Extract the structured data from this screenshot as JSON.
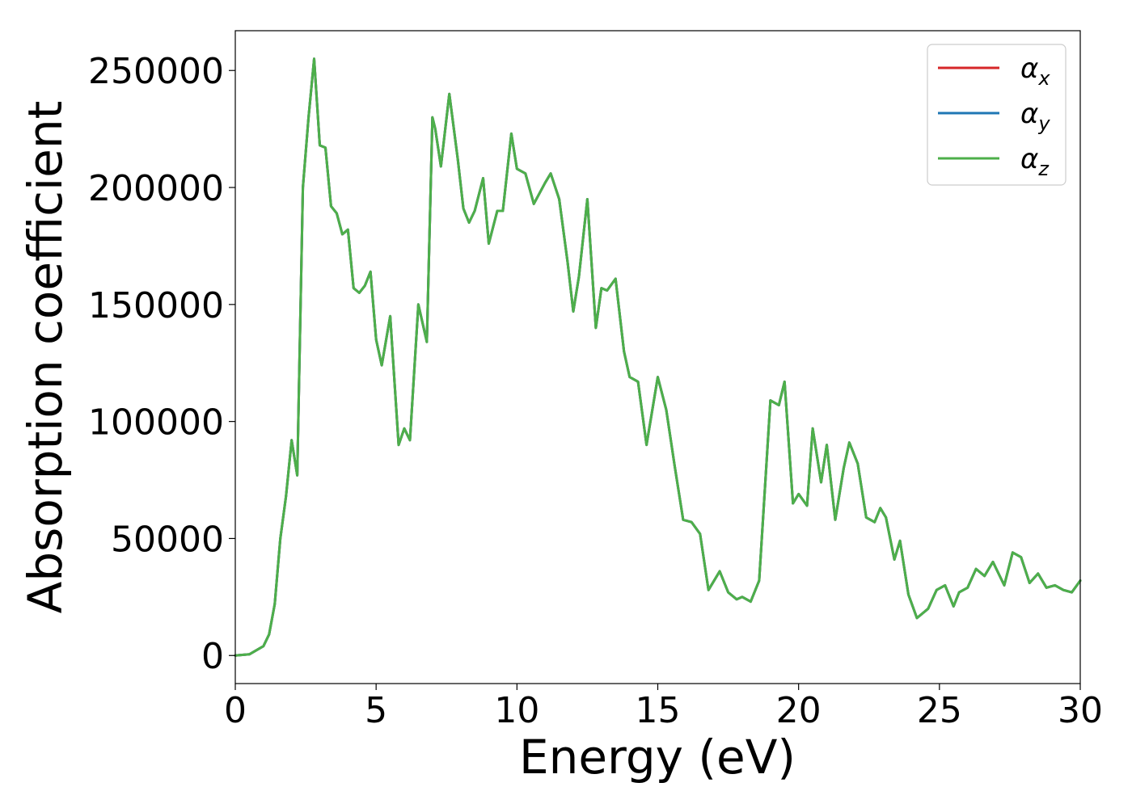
{
  "chart_data": {
    "type": "line",
    "title": "",
    "xlabel": "Energy (eV)",
    "ylabel": "Absorption coefficient",
    "xlim": [
      0,
      30
    ],
    "ylim": [
      -12000,
      267000
    ],
    "xticks": [
      0,
      5,
      10,
      15,
      20,
      25,
      30
    ],
    "xtick_labels": [
      "0",
      "5",
      "10",
      "15",
      "20",
      "25",
      "30"
    ],
    "yticks": [
      0,
      50000,
      100000,
      150000,
      200000,
      250000
    ],
    "ytick_labels": [
      "0",
      "50000",
      "100000",
      "150000",
      "200000",
      "250000"
    ],
    "grid": false,
    "legend_position": "top-right",
    "colors": {
      "alpha_x": "#d62728",
      "alpha_y": "#1f77b4",
      "alpha_z": "#4daf4a",
      "axis": "#000000",
      "legend_border": "#cccccc"
    },
    "x": [
      0,
      0.5,
      1.0,
      1.2,
      1.4,
      1.6,
      1.8,
      2.0,
      2.2,
      2.4,
      2.6,
      2.8,
      3.0,
      3.2,
      3.4,
      3.6,
      3.8,
      4.0,
      4.2,
      4.4,
      4.6,
      4.8,
      5.0,
      5.2,
      5.5,
      5.8,
      6.0,
      6.2,
      6.5,
      6.8,
      7.0,
      7.1,
      7.3,
      7.6,
      7.9,
      8.1,
      8.3,
      8.5,
      8.8,
      9.0,
      9.3,
      9.5,
      9.8,
      10.0,
      10.3,
      10.6,
      11.0,
      11.2,
      11.5,
      11.8,
      12.0,
      12.2,
      12.5,
      12.8,
      13.0,
      13.2,
      13.5,
      13.8,
      14.0,
      14.3,
      14.6,
      15.0,
      15.3,
      15.6,
      15.9,
      16.2,
      16.5,
      16.8,
      17.2,
      17.5,
      17.8,
      18.0,
      18.3,
      18.6,
      19.0,
      19.3,
      19.5,
      19.8,
      20.0,
      20.3,
      20.5,
      20.8,
      21.0,
      21.3,
      21.6,
      21.8,
      22.1,
      22.4,
      22.7,
      22.9,
      23.1,
      23.4,
      23.6,
      23.9,
      24.2,
      24.6,
      24.9,
      25.2,
      25.5,
      25.7,
      26.0,
      26.3,
      26.6,
      26.9,
      27.3,
      27.6,
      27.9,
      28.2,
      28.5,
      28.8,
      29.1,
      29.4,
      29.7,
      30.0
    ],
    "series": [
      {
        "name": "α_x",
        "values": [
          0,
          500,
          4000,
          9000,
          22000,
          50000,
          68000,
          92000,
          77000,
          200000,
          230000,
          255000,
          218000,
          217000,
          192000,
          189000,
          180000,
          182000,
          157000,
          155000,
          158000,
          164000,
          135000,
          124000,
          145000,
          90000,
          97000,
          92000,
          150000,
          134000,
          230000,
          225000,
          209000,
          240000,
          212000,
          191000,
          185000,
          190000,
          204000,
          176000,
          190000,
          190000,
          223000,
          208000,
          206000,
          193000,
          202000,
          206000,
          195000,
          168000,
          147000,
          162000,
          195000,
          140000,
          157000,
          156000,
          161000,
          130000,
          119000,
          117000,
          90000,
          119000,
          105000,
          81000,
          58000,
          57000,
          52000,
          28000,
          36000,
          27000,
          24000,
          25000,
          23000,
          32000,
          109000,
          107000,
          117000,
          65000,
          69000,
          64000,
          97000,
          74000,
          90000,
          58000,
          80000,
          91000,
          82000,
          59000,
          57000,
          63000,
          59000,
          41000,
          49000,
          26000,
          16000,
          20000,
          28000,
          30000,
          21000,
          27000,
          29000,
          37000,
          34000,
          40000,
          30000,
          44000,
          42000,
          31000,
          35000,
          29000,
          30000,
          28000,
          27000,
          32000
        ]
      },
      {
        "name": "α_y",
        "values": [
          0,
          500,
          4000,
          9000,
          22000,
          50000,
          68000,
          92000,
          77000,
          200000,
          230000,
          255000,
          218000,
          217000,
          192000,
          189000,
          180000,
          182000,
          157000,
          155000,
          158000,
          164000,
          135000,
          124000,
          145000,
          90000,
          97000,
          92000,
          150000,
          134000,
          230000,
          225000,
          209000,
          240000,
          212000,
          191000,
          185000,
          190000,
          204000,
          176000,
          190000,
          190000,
          223000,
          208000,
          206000,
          193000,
          202000,
          206000,
          195000,
          168000,
          147000,
          162000,
          195000,
          140000,
          157000,
          156000,
          161000,
          130000,
          119000,
          117000,
          90000,
          119000,
          105000,
          81000,
          58000,
          57000,
          52000,
          28000,
          36000,
          27000,
          24000,
          25000,
          23000,
          32000,
          109000,
          107000,
          117000,
          65000,
          69000,
          64000,
          97000,
          74000,
          90000,
          58000,
          80000,
          91000,
          82000,
          59000,
          57000,
          63000,
          59000,
          41000,
          49000,
          26000,
          16000,
          20000,
          28000,
          30000,
          21000,
          27000,
          29000,
          37000,
          34000,
          40000,
          30000,
          44000,
          42000,
          31000,
          35000,
          29000,
          30000,
          28000,
          27000,
          32000
        ]
      },
      {
        "name": "α_z",
        "values": [
          0,
          500,
          4000,
          9000,
          22000,
          50000,
          68000,
          92000,
          77000,
          200000,
          230000,
          255000,
          218000,
          217000,
          192000,
          189000,
          180000,
          182000,
          157000,
          155000,
          158000,
          164000,
          135000,
          124000,
          145000,
          90000,
          97000,
          92000,
          150000,
          134000,
          230000,
          225000,
          209000,
          240000,
          212000,
          191000,
          185000,
          190000,
          204000,
          176000,
          190000,
          190000,
          223000,
          208000,
          206000,
          193000,
          202000,
          206000,
          195000,
          168000,
          147000,
          162000,
          195000,
          140000,
          157000,
          156000,
          161000,
          130000,
          119000,
          117000,
          90000,
          119000,
          105000,
          81000,
          58000,
          57000,
          52000,
          28000,
          36000,
          27000,
          24000,
          25000,
          23000,
          32000,
          109000,
          107000,
          117000,
          65000,
          69000,
          64000,
          97000,
          74000,
          90000,
          58000,
          80000,
          91000,
          82000,
          59000,
          57000,
          63000,
          59000,
          41000,
          49000,
          26000,
          16000,
          20000,
          28000,
          30000,
          21000,
          27000,
          29000,
          37000,
          34000,
          40000,
          30000,
          44000,
          42000,
          31000,
          35000,
          29000,
          30000,
          28000,
          27000,
          32000
        ]
      }
    ],
    "legend": [
      {
        "base": "α",
        "sub": "x",
        "color_key": "alpha_x"
      },
      {
        "base": "α",
        "sub": "y",
        "color_key": "alpha_y"
      },
      {
        "base": "α",
        "sub": "z",
        "color_key": "alpha_z"
      }
    ]
  }
}
